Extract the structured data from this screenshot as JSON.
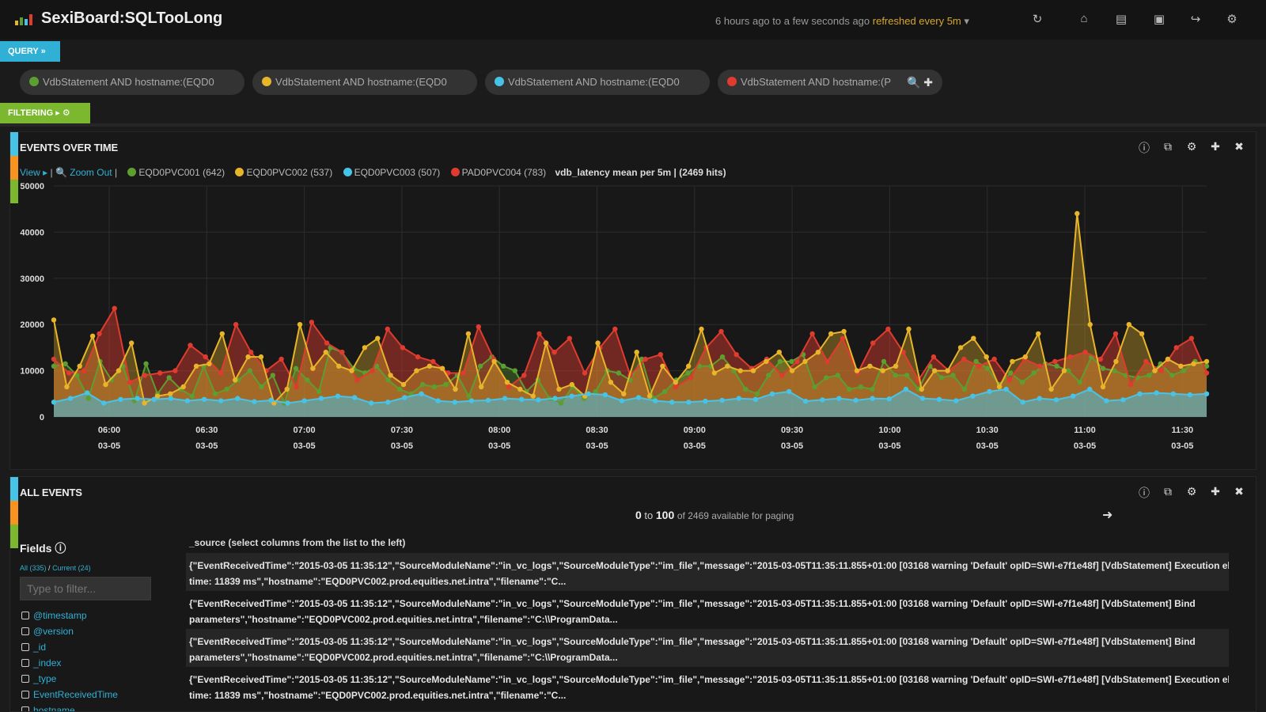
{
  "app": {
    "title": "SexiBoard:SQLTooLong",
    "time_range": "6 hours ago to a few seconds ago",
    "refresh": "refreshed every 5m",
    "refresh_caret": "▾",
    "icons": [
      "refresh-icon",
      "home-icon",
      "folder-icon",
      "save-icon",
      "share-icon",
      "gear-icon"
    ]
  },
  "query": {
    "label": "QUERY »",
    "pills": [
      {
        "text": "VdbStatement AND hostname:(EQD0",
        "color": "#5c9e30"
      },
      {
        "text": "VdbStatement AND hostname:(EQD0",
        "color": "#e8b52a"
      },
      {
        "text": "VdbStatement AND hostname:(EQD0",
        "color": "#47c3e8"
      },
      {
        "text": "VdbStatement AND hostname:(P",
        "color": "#e03b2f"
      }
    ],
    "pill_actions": "🔍 ✚"
  },
  "filtering": {
    "label": "FILTERING ▸ ⚙"
  },
  "events_panel": {
    "title": "EVENTS OVER TIME",
    "view": "View ▸",
    "sep": "|",
    "zoom": "🔍 Zoom Out",
    "legend": [
      {
        "label": "EQD0PVC001 (642)",
        "color": "#5c9e30"
      },
      {
        "label": "EQD0PVC002 (537)",
        "color": "#e8b52a"
      },
      {
        "label": "EQD0PVC003 (507)",
        "color": "#47c3e8"
      },
      {
        "label": "PAD0PVC004 (783)",
        "color": "#e03b2f"
      }
    ],
    "summary": "vdb_latency mean per 5m | (2469 hits)",
    "icons": [
      "info-icon",
      "duplicate-icon",
      "gear-icon",
      "move-icon",
      "close-icon"
    ]
  },
  "chart_data": {
    "type": "area",
    "y_ticks": [
      "0",
      "10000",
      "20000",
      "30000",
      "40000",
      "50000"
    ],
    "ylim": [
      0,
      50000
    ],
    "x_ticks": [
      {
        "time": "06:00",
        "date": "03-05"
      },
      {
        "time": "06:30",
        "date": "03-05"
      },
      {
        "time": "07:00",
        "date": "03-05"
      },
      {
        "time": "07:30",
        "date": "03-05"
      },
      {
        "time": "08:00",
        "date": "03-05"
      },
      {
        "time": "08:30",
        "date": "03-05"
      },
      {
        "time": "09:00",
        "date": "03-05"
      },
      {
        "time": "09:30",
        "date": "03-05"
      },
      {
        "time": "10:00",
        "date": "03-05"
      },
      {
        "time": "10:30",
        "date": "03-05"
      },
      {
        "time": "11:00",
        "date": "03-05"
      },
      {
        "time": "11:30",
        "date": "03-05"
      }
    ],
    "grid": true,
    "series": [
      {
        "name": "EQD0PVC001 (642)",
        "color": "#5c9e30",
        "values": [
          11000,
          11500,
          9000,
          4000,
          12000,
          8000,
          11000,
          3500,
          11500,
          5000,
          8500,
          6000,
          4500,
          11000,
          5000,
          6000,
          8000,
          10000,
          6500,
          9000,
          3000,
          10500,
          8000,
          5500,
          15000,
          14000,
          10500,
          9500,
          11000,
          8000,
          6000,
          5000,
          7000,
          6500,
          7000,
          9000,
          4500,
          11000,
          13000,
          11000,
          10000,
          5500,
          8000,
          4000,
          3000,
          6500,
          4000,
          5500,
          10000,
          9500,
          8000,
          12500,
          4000,
          5500,
          8000,
          9500,
          11000,
          11000,
          13000,
          10000,
          6000,
          5000,
          9000,
          12000,
          12000,
          13500,
          6500,
          8500,
          9000,
          6000,
          6500,
          6000,
          12000,
          9000,
          9000,
          6000,
          11000,
          8500,
          9000,
          6000,
          12000,
          10500,
          7000,
          9500,
          7500,
          9500,
          11500,
          11000,
          10000,
          7500,
          13000,
          10500,
          10000,
          9000,
          8500,
          9000,
          11500,
          9000,
          10000,
          12000,
          11000
        ]
      },
      {
        "name": "EQD0PVC002 (537)",
        "color": "#e8b52a",
        "values": [
          21000,
          6500,
          11000,
          17500,
          7000,
          10000,
          16000,
          3000,
          4500,
          5000,
          6500,
          11000,
          11500,
          18000,
          8000,
          13000,
          13000,
          3000,
          6000,
          20000,
          10500,
          14000,
          11000,
          10000,
          15000,
          17000,
          9000,
          7000,
          10000,
          11000,
          10500,
          6000,
          18000,
          6500,
          12000,
          7500,
          6000,
          4500,
          16000,
          6000,
          7000,
          4500,
          16000,
          7500,
          5000,
          14000,
          4500,
          11000,
          7500,
          11000,
          19000,
          9500,
          11000,
          10000,
          10000,
          12000,
          14000,
          10000,
          12000,
          14000,
          18000,
          18500,
          10000,
          11000,
          10000,
          11000,
          19000,
          6000,
          10000,
          10000,
          15000,
          17000,
          13000,
          6500,
          12000,
          13000,
          18000,
          6000,
          10000,
          44000,
          20000,
          6500,
          12000,
          20000,
          18000,
          10000,
          12500,
          11000,
          11500,
          12000
        ]
      },
      {
        "name": "EQD0PVC003 (507)",
        "color": "#47c3e8",
        "values": [
          3200,
          4000,
          5200,
          3000,
          3800,
          4000,
          3800,
          4000,
          3500,
          3800,
          3500,
          4000,
          3300,
          3600,
          3000,
          3500,
          4000,
          4500,
          4200,
          3000,
          3200,
          4200,
          5000,
          3500,
          3200,
          3500,
          3600,
          4000,
          3800,
          3700,
          4000,
          4500,
          5000,
          4800,
          3500,
          4200,
          3500,
          3200,
          3200,
          3400,
          3600,
          4000,
          3800,
          5000,
          5500,
          3400,
          3700,
          4000,
          3600,
          4000,
          3900,
          6000,
          4000,
          3800,
          3500,
          4500,
          5500,
          6000,
          3200,
          4000,
          3700,
          4500,
          6000,
          3500,
          3700,
          5000,
          5200,
          5000,
          4800,
          5000
        ]
      },
      {
        "name": "PAD0PVC004 (783)",
        "color": "#e03b2f",
        "values": [
          12500,
          9500,
          10000,
          18000,
          23500,
          7500,
          9000,
          9500,
          10000,
          15500,
          13000,
          9500,
          20000,
          14000,
          10000,
          12500,
          6500,
          20500,
          16000,
          14000,
          8000,
          10000,
          19000,
          15000,
          13000,
          12000,
          9500,
          9500,
          19500,
          12500,
          6500,
          9000,
          18000,
          14000,
          17000,
          9500,
          15000,
          19000,
          9000,
          12500,
          13500,
          6500,
          8500,
          15000,
          18500,
          13500,
          10500,
          12500,
          9000,
          12000,
          18000,
          12000,
          17000,
          9500,
          16000,
          19000,
          14000,
          8000,
          13000,
          10000,
          12500,
          11000,
          12500,
          8000,
          12500,
          11000,
          12000,
          13000,
          14000,
          12500,
          18000,
          7000,
          12000,
          10000,
          15000,
          17000,
          9500
        ]
      }
    ]
  },
  "all_events": {
    "title": "ALL EVENTS",
    "paging_from": "0",
    "paging_to_word": "to",
    "paging_to": "100",
    "paging_rest": "of 2469 available for paging",
    "next": "➜",
    "fields_title": "Fields ⓘ",
    "fields_all": "All (335)",
    "fields_sep": "/",
    "fields_current": "Current (24)",
    "filter_placeholder": "Type to filter...",
    "fields": [
      "@timestamp",
      "@version",
      "_id",
      "_index",
      "_type",
      "EventReceivedTime",
      "hostname"
    ],
    "source_header": "_source (select columns from the list to the left)",
    "rows": [
      {
        "l1": "{\"EventReceivedTime\":\"2015-03-05 11:35:12\",\"SourceModuleName\":\"in_vc_logs\",\"SourceModuleType\":\"im_file\",\"message\":\"2015-03-05T11:35:11.855+01:00 [03168 warning 'Default' opID=SWI-e7f1e48f] [VdbStatement] Execution elapsed",
        "l2": "time: 11839 ms\",\"hostname\":\"EQD0PVC002.prod.equities.net.intra\",\"filename\":\"C..."
      },
      {
        "l1": "{\"EventReceivedTime\":\"2015-03-05 11:35:12\",\"SourceModuleName\":\"in_vc_logs\",\"SourceModuleType\":\"im_file\",\"message\":\"2015-03-05T11:35:11.855+01:00 [03168 warning 'Default' opID=SWI-e7f1e48f] [VdbStatement] Bind",
        "l2": "parameters\",\"hostname\":\"EQD0PVC002.prod.equities.net.intra\",\"filename\":\"C:\\\\ProgramData..."
      },
      {
        "l1": "{\"EventReceivedTime\":\"2015-03-05 11:35:12\",\"SourceModuleName\":\"in_vc_logs\",\"SourceModuleType\":\"im_file\",\"message\":\"2015-03-05T11:35:11.855+01:00 [03168 warning 'Default' opID=SWI-e7f1e48f] [VdbStatement] Bind",
        "l2": "parameters\",\"hostname\":\"EQD0PVC002.prod.equities.net.intra\",\"filename\":\"C:\\\\ProgramData..."
      },
      {
        "l1": "{\"EventReceivedTime\":\"2015-03-05 11:35:12\",\"SourceModuleName\":\"in_vc_logs\",\"SourceModuleType\":\"im_file\",\"message\":\"2015-03-05T11:35:11.855+01:00 [03168 warning 'Default' opID=SWI-e7f1e48f] [VdbStatement] Execution elapsed",
        "l2": "time: 11839 ms\",\"hostname\":\"EQD0PVC002.prod.equities.net.intra\",\"filename\":\"C..."
      }
    ],
    "icons": [
      "info-icon",
      "duplicate-icon",
      "gear-icon",
      "move-icon",
      "close-icon"
    ]
  }
}
